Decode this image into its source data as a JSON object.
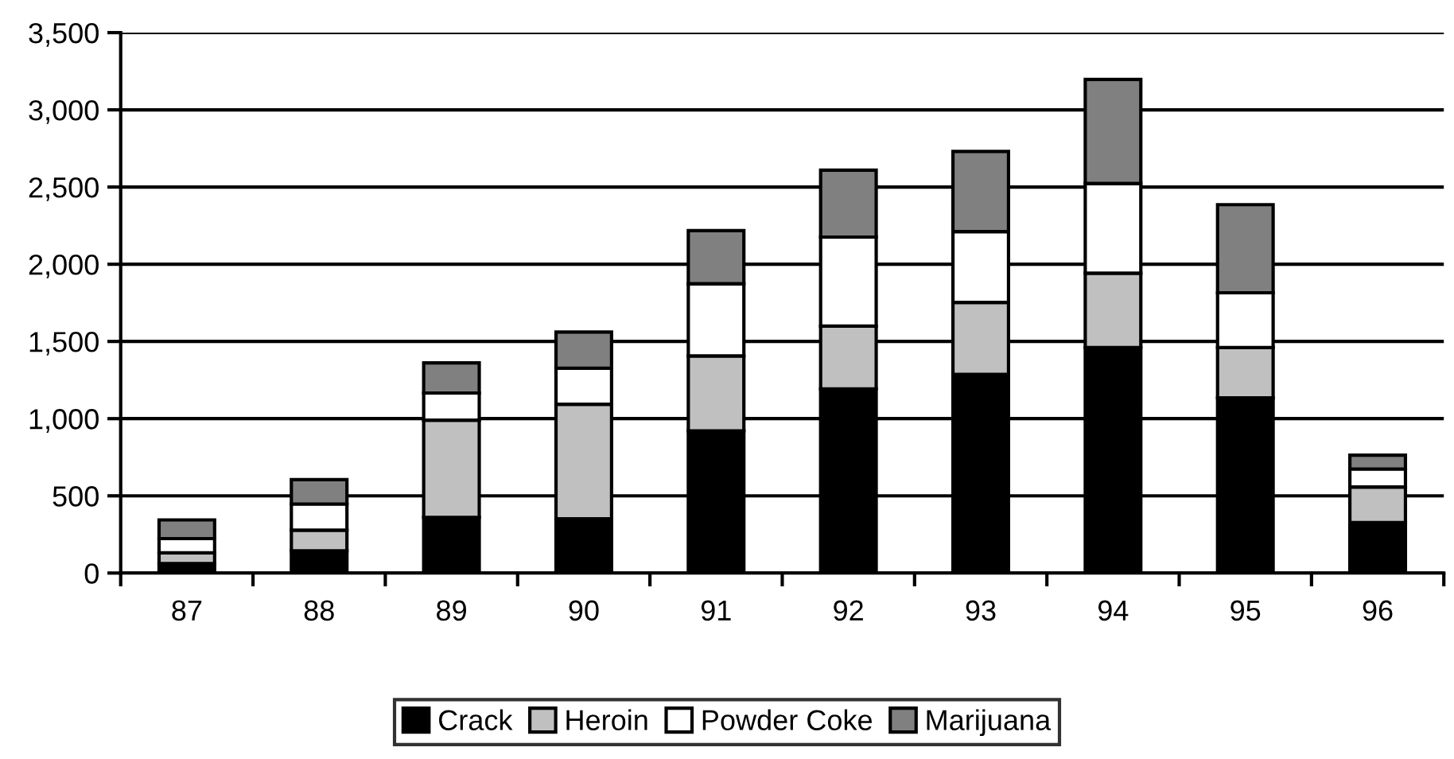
{
  "chart_data": {
    "type": "bar",
    "stacked": true,
    "categories": [
      "87",
      "88",
      "89",
      "90",
      "91",
      "92",
      "93",
      "94",
      "95",
      "96"
    ],
    "series": [
      {
        "name": "Crack",
        "color": "#000000",
        "values": [
          62,
          144,
          361,
          351,
          921,
          1193,
          1286,
          1461,
          1135,
          327
        ]
      },
      {
        "name": "Heroin",
        "color": "#c0c0c0",
        "values": [
          69,
          134,
          629,
          742,
          485,
          406,
          467,
          481,
          326,
          230
        ]
      },
      {
        "name": "Powder Coke",
        "color": "#ffffff",
        "values": [
          92,
          169,
          176,
          234,
          468,
          577,
          458,
          581,
          354,
          117
        ]
      },
      {
        "name": "Marijuana",
        "color": "#808080",
        "values": [
          121,
          158,
          195,
          234,
          344,
          433,
          519,
          674,
          571,
          89
        ]
      }
    ],
    "ylim": [
      0,
      3500
    ],
    "yticks": [
      {
        "value": 0,
        "label": "0"
      },
      {
        "value": 500,
        "label": "500"
      },
      {
        "value": 1000,
        "label": "1,000"
      },
      {
        "value": 1500,
        "label": "1,500"
      },
      {
        "value": 2000,
        "label": "2,000"
      },
      {
        "value": 2500,
        "label": "2,500"
      },
      {
        "value": 3000,
        "label": "3,000"
      },
      {
        "value": 3500,
        "label": "3,500"
      }
    ],
    "grid": "y",
    "legend": "bottom"
  }
}
